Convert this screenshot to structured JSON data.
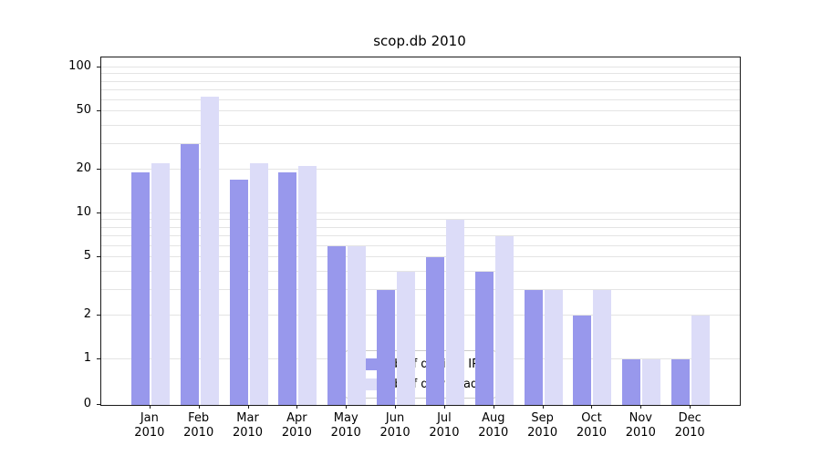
{
  "chart_data": {
    "type": "bar",
    "title": "scop.db 2010",
    "yscale": "symlog",
    "ylim": [
      0,
      150
    ],
    "yticks": [
      0,
      1,
      2,
      5,
      10,
      20,
      50,
      100
    ],
    "grid": true,
    "months": [
      "Jan",
      "Feb",
      "Mar",
      "Apr",
      "May",
      "Jun",
      "Jul",
      "Aug",
      "Sep",
      "Oct",
      "Nov",
      "Dec"
    ],
    "year": "2010",
    "series": [
      {
        "name": "Nb of distinct IPs",
        "color": "#9898ec",
        "values": [
          19,
          30,
          17,
          19,
          6,
          3,
          5,
          4,
          3,
          2,
          1,
          1
        ]
      },
      {
        "name": "Nb of downloads",
        "color": "#dcdcf8",
        "values": [
          22,
          63,
          22,
          21,
          6,
          4,
          9,
          7,
          3,
          3,
          1,
          2
        ]
      }
    ],
    "legend": {
      "position": "lower center",
      "entries": [
        "Nb of distinct IPs",
        "Nb of downloads"
      ]
    }
  }
}
